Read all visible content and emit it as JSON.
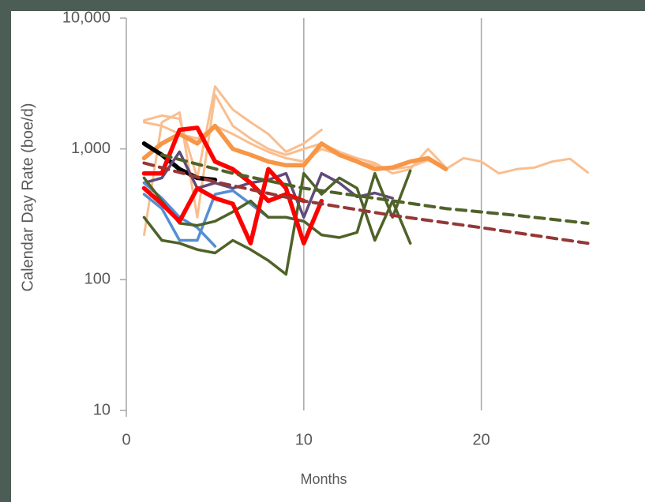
{
  "chart_data": {
    "type": "line",
    "xlabel": "Months",
    "ylabel": "Calendar Day Rate (boe/d)",
    "xlim": [
      0,
      29
    ],
    "xticks": [
      0,
      10,
      20
    ],
    "ylim": [
      10,
      10000
    ],
    "log_y": true,
    "yticks": [
      {
        "value": 10000,
        "label": "10,000"
      },
      {
        "value": 1000,
        "label": "1,000"
      },
      100,
      10
    ],
    "grid": "x",
    "series": [
      {
        "color": "#f9be8f",
        "style": "thin",
        "x": [
          1,
          2,
          3,
          4,
          5,
          6,
          7,
          8,
          9,
          10,
          11,
          12,
          13,
          14,
          15,
          16,
          17,
          18,
          19,
          20,
          21,
          22,
          23,
          24,
          25,
          26
        ],
        "values": [
          1600,
          1500,
          1300,
          1200,
          1500,
          1300,
          1100,
          950,
          850,
          800,
          1000,
          900,
          800,
          750,
          700,
          730,
          820,
          700,
          850,
          800,
          650,
          700,
          720,
          800,
          840,
          660
        ]
      },
      {
        "color": "#f9be8f",
        "style": "thin",
        "x": [
          1,
          2,
          3,
          4,
          5,
          6,
          7,
          8,
          9,
          10,
          11
        ],
        "values": [
          1650,
          1800,
          1700,
          600,
          3000,
          2000,
          1600,
          1300,
          950,
          1100,
          1400
        ]
      },
      {
        "color": "#f9be8f",
        "style": "thin",
        "x": [
          1,
          2,
          3,
          4,
          5,
          6,
          7,
          8,
          9,
          10,
          11,
          12,
          13,
          14,
          15,
          16,
          17,
          18
        ],
        "values": [
          220,
          1600,
          1900,
          300,
          2600,
          1500,
          1200,
          1000,
          900,
          1000,
          1100,
          950,
          850,
          780,
          650,
          700,
          1000,
          720
        ]
      },
      {
        "color": "#f79646",
        "style": "thick",
        "x": [
          1,
          2,
          3,
          4,
          5,
          6,
          7,
          8,
          9,
          10,
          11,
          12,
          13,
          14,
          15,
          16,
          17,
          18
        ],
        "values": [
          850,
          1100,
          1300,
          1100,
          1500,
          1000,
          900,
          800,
          750,
          750,
          1100,
          900,
          800,
          700,
          720,
          800,
          850,
          700
        ]
      },
      {
        "color": "#000000",
        "style": "thick",
        "x": [
          1,
          2,
          3,
          4,
          5
        ],
        "values": [
          1100,
          900,
          700,
          600,
          580
        ]
      },
      {
        "color": "#604a7b",
        "style": "normal",
        "x": [
          1,
          2,
          3,
          4,
          5,
          6,
          7,
          8,
          9,
          10,
          11,
          12,
          13,
          14,
          15
        ],
        "values": [
          550,
          600,
          950,
          500,
          550,
          500,
          550,
          580,
          650,
          300,
          650,
          550,
          430,
          460,
          420
        ]
      },
      {
        "color": "#558ed5",
        "style": "normal",
        "x": [
          1,
          2,
          3,
          4,
          5
        ],
        "values": [
          550,
          420,
          300,
          250,
          180
        ]
      },
      {
        "color": "#558ed5",
        "style": "normal",
        "x": [
          1,
          2,
          3,
          4,
          5,
          6,
          7,
          8,
          9,
          10
        ],
        "values": [
          450,
          350,
          200,
          200,
          450,
          480,
          380,
          300,
          300,
          280
        ]
      },
      {
        "color": "#4f6228",
        "style": "normal",
        "x": [
          1,
          2,
          3,
          4,
          5,
          6,
          7,
          8,
          9,
          10,
          11,
          12,
          13,
          14,
          15,
          16
        ],
        "values": [
          300,
          200,
          190,
          170,
          160,
          200,
          170,
          140,
          110,
          650,
          450,
          600,
          500,
          200,
          400,
          190
        ]
      },
      {
        "color": "#4f6228",
        "style": "normal",
        "x": [
          1,
          2,
          3,
          4,
          5,
          6,
          7,
          8,
          9,
          10,
          11,
          12,
          13,
          14,
          15,
          16
        ],
        "values": [
          600,
          400,
          270,
          260,
          280,
          330,
          400,
          300,
          300,
          280,
          220,
          210,
          230,
          650,
          300,
          680
        ]
      },
      {
        "color": "#ff0000",
        "style": "thick",
        "x": [
          1,
          2,
          3,
          4,
          5,
          6,
          7,
          8,
          9,
          10
        ],
        "values": [
          650,
          650,
          1400,
          1450,
          800,
          700,
          550,
          400,
          450,
          400
        ]
      },
      {
        "color": "#ff0000",
        "style": "thick",
        "x": [
          1,
          2,
          3,
          4,
          5,
          6,
          7,
          8,
          9,
          10,
          11
        ],
        "values": [
          500,
          380,
          280,
          500,
          420,
          380,
          190,
          700,
          500,
          190,
          400
        ]
      },
      {
        "color": "#4f6228",
        "style": "dashed",
        "x": [
          2,
          6,
          10,
          14,
          18,
          22,
          26
        ],
        "values": [
          900,
          650,
          500,
          420,
          350,
          310,
          270
        ]
      },
      {
        "color": "#953735",
        "style": "dashed",
        "x": [
          1,
          5,
          10,
          15,
          20,
          26
        ],
        "values": [
          780,
          560,
          400,
          310,
          250,
          190
        ]
      }
    ]
  }
}
